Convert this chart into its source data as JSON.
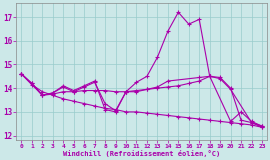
{
  "background_color": "#cce8e8",
  "line_color": "#aa00aa",
  "grid_color": "#99cccc",
  "xlabel": "Windchill (Refroidissement éolien,°C)",
  "xlabel_color": "#aa00aa",
  "tick_color": "#aa00aa",
  "xlim": [
    -0.5,
    23.5
  ],
  "ylim": [
    11.8,
    17.6
  ],
  "yticks": [
    12,
    13,
    14,
    15,
    16,
    17
  ],
  "xticks": [
    0,
    1,
    2,
    3,
    4,
    5,
    6,
    7,
    8,
    9,
    10,
    11,
    12,
    13,
    14,
    15,
    16,
    17,
    18,
    19,
    20,
    21,
    22,
    23
  ],
  "s1_x": [
    0,
    1,
    2,
    3,
    4,
    5,
    6,
    7,
    8,
    9,
    10,
    11,
    12,
    13,
    14,
    15,
    16,
    17,
    18,
    20,
    21,
    22,
    23
  ],
  "s1_y": [
    14.6,
    14.2,
    13.7,
    13.8,
    14.1,
    13.9,
    14.1,
    14.3,
    13.1,
    13.0,
    13.85,
    14.25,
    14.5,
    15.3,
    16.4,
    17.2,
    16.7,
    16.9,
    14.5,
    12.6,
    13.0,
    12.6,
    12.4
  ],
  "s2_x": [
    0,
    1,
    2,
    3,
    4,
    5,
    6,
    7,
    8,
    9,
    10,
    11,
    12,
    13,
    14,
    15,
    16,
    17,
    18,
    19,
    20,
    21,
    22,
    23
  ],
  "s2_y": [
    14.6,
    14.2,
    13.7,
    13.75,
    13.85,
    13.85,
    13.9,
    13.9,
    13.9,
    13.85,
    13.85,
    13.9,
    13.95,
    14.0,
    14.05,
    14.1,
    14.2,
    14.3,
    14.5,
    14.45,
    14.0,
    12.65,
    12.55,
    12.4
  ],
  "s3_x": [
    0,
    1,
    2,
    3,
    4,
    5,
    6,
    7,
    8,
    9,
    10,
    11,
    12,
    13,
    14,
    15,
    16,
    17,
    18,
    19,
    20,
    21,
    22,
    23
  ],
  "s3_y": [
    14.6,
    14.15,
    13.85,
    13.7,
    13.55,
    13.45,
    13.35,
    13.25,
    13.15,
    13.1,
    13.0,
    13.0,
    12.95,
    12.9,
    12.85,
    12.8,
    12.75,
    12.7,
    12.65,
    12.6,
    12.55,
    12.5,
    12.45,
    12.35
  ],
  "s4_x": [
    0,
    2,
    3,
    4,
    5,
    6,
    7,
    8,
    9,
    10,
    11,
    12,
    13,
    14,
    17,
    18,
    19,
    20,
    22,
    23
  ],
  "s4_y": [
    14.6,
    13.7,
    13.8,
    14.05,
    13.85,
    14.05,
    14.25,
    13.35,
    13.05,
    13.85,
    13.85,
    13.95,
    14.05,
    14.3,
    14.45,
    14.5,
    14.4,
    13.95,
    12.55,
    12.35
  ]
}
